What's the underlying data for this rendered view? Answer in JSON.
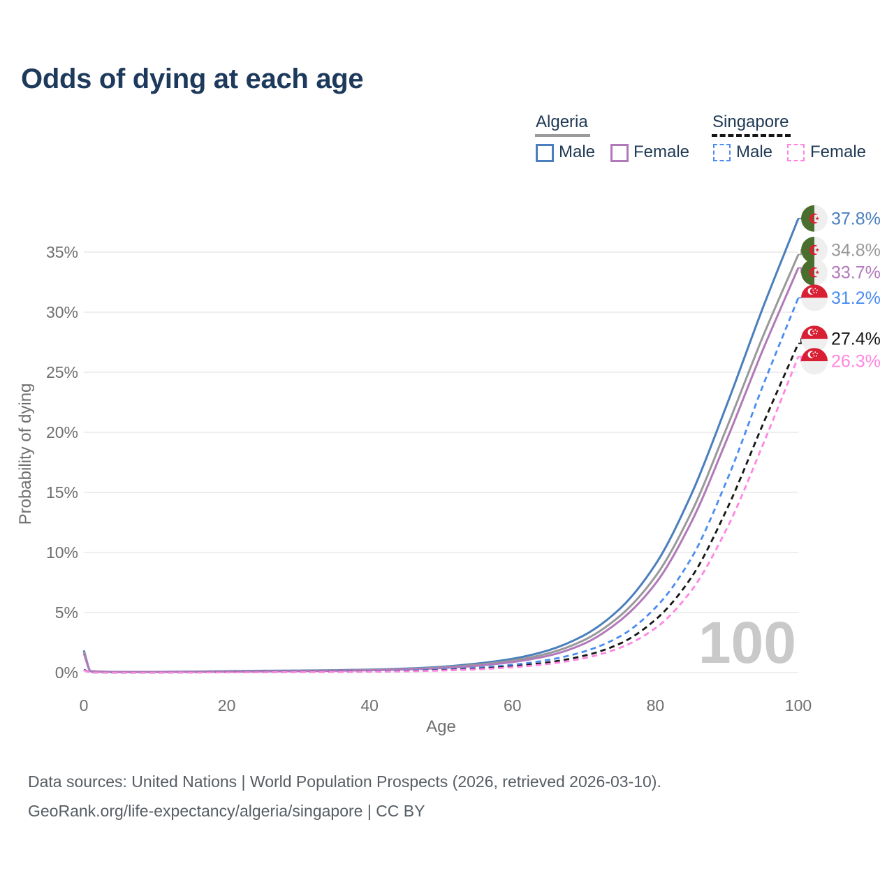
{
  "title": "Odds of dying at each age",
  "legend": {
    "groups": [
      {
        "country": "Algeria",
        "line_style": "solid",
        "line_color": "#9b9b9b",
        "items": [
          {
            "label": "Male",
            "color": "#4a7ebc"
          },
          {
            "label": "Female",
            "color": "#b279ba"
          }
        ]
      },
      {
        "country": "Singapore",
        "line_style": "dashed",
        "line_color": "#161616",
        "items": [
          {
            "label": "Male",
            "color": "#4b8df0"
          },
          {
            "label": "Female",
            "color": "#ff85e2"
          }
        ]
      }
    ]
  },
  "footer": {
    "line1": "Data sources: United Nations | World Population Prospects (2026, retrieved 2026-03-10).",
    "line2": "GeoRank.org/life-expectancy/algeria/singapore | CC BY"
  },
  "chart_data": {
    "type": "line",
    "title": "Odds of dying at each age",
    "xlabel": "Age",
    "ylabel": "Probability of dying",
    "xlim": [
      0,
      100
    ],
    "ylim": [
      0,
      38
    ],
    "x_ticks": [
      0,
      20,
      40,
      60,
      80,
      100
    ],
    "y_ticks": [
      "0%",
      "5%",
      "10%",
      "15%",
      "20%",
      "25%",
      "30%",
      "35%"
    ],
    "y_tick_step_pct": 5,
    "grid": "horizontal",
    "legend_position": "top-right",
    "age_indicator_label": "100",
    "x": [
      0,
      1,
      5,
      10,
      15,
      20,
      25,
      30,
      35,
      40,
      45,
      50,
      55,
      60,
      65,
      70,
      75,
      80,
      85,
      90,
      95,
      100
    ],
    "series": [
      {
        "key": "algeria-male",
        "name": "Algeria Male",
        "country": "Algeria",
        "flag": "dz",
        "color": "#4a7ebc",
        "dashed": false,
        "end_label": "37.8%",
        "end_value_pct": 37.8,
        "values": [
          1.85,
          0.12,
          0.06,
          0.06,
          0.08,
          0.12,
          0.15,
          0.17,
          0.2,
          0.25,
          0.33,
          0.48,
          0.75,
          1.15,
          1.85,
          3.1,
          5.3,
          9.0,
          14.8,
          22.3,
          30.3,
          37.8
        ]
      },
      {
        "key": "algeria-combined",
        "name": "Algeria (both sexes)",
        "country": "Algeria",
        "flag": "dz",
        "color": "#999999",
        "dashed": false,
        "end_label": "34.8%",
        "end_value_pct": 34.8,
        "values": [
          1.75,
          0.11,
          0.055,
          0.055,
          0.07,
          0.1,
          0.12,
          0.14,
          0.17,
          0.22,
          0.29,
          0.42,
          0.65,
          1.0,
          1.6,
          2.7,
          4.7,
          8.0,
          13.3,
          20.4,
          27.9,
          34.8
        ]
      },
      {
        "key": "algeria-female",
        "name": "Algeria Female",
        "country": "Algeria",
        "flag": "dz",
        "color": "#b279ba",
        "dashed": false,
        "end_label": "33.7%",
        "end_value_pct": 33.7,
        "values": [
          1.6,
          0.1,
          0.05,
          0.05,
          0.06,
          0.08,
          0.1,
          0.12,
          0.15,
          0.19,
          0.26,
          0.37,
          0.57,
          0.88,
          1.4,
          2.4,
          4.3,
          7.4,
          12.5,
          19.4,
          26.8,
          33.7
        ]
      },
      {
        "key": "singapore-male",
        "name": "Singapore Male",
        "country": "Singapore",
        "flag": "sg",
        "color": "#4b8df0",
        "dashed": true,
        "end_label": "31.2%",
        "end_value_pct": 31.2,
        "values": [
          0.25,
          0.02,
          0.01,
          0.01,
          0.02,
          0.04,
          0.05,
          0.06,
          0.08,
          0.11,
          0.16,
          0.25,
          0.4,
          0.65,
          1.05,
          1.75,
          3.0,
          5.4,
          9.5,
          16.0,
          23.8,
          31.2
        ]
      },
      {
        "key": "singapore-combined",
        "name": "Singapore (both sexes)",
        "country": "Singapore",
        "flag": "sg",
        "color": "#161616",
        "dashed": true,
        "end_label": "27.4%",
        "end_value_pct": 27.4,
        "values": [
          0.22,
          0.018,
          0.009,
          0.009,
          0.015,
          0.03,
          0.04,
          0.05,
          0.065,
          0.09,
          0.13,
          0.2,
          0.32,
          0.52,
          0.85,
          1.4,
          2.4,
          4.4,
          7.9,
          13.6,
          20.6,
          27.4
        ]
      },
      {
        "key": "singapore-female",
        "name": "Singapore Female",
        "country": "Singapore",
        "flag": "sg",
        "color": "#ff85e2",
        "dashed": true,
        "end_label": "26.3%",
        "end_value_pct": 26.3,
        "values": [
          0.19,
          0.015,
          0.008,
          0.008,
          0.012,
          0.02,
          0.03,
          0.04,
          0.05,
          0.075,
          0.11,
          0.17,
          0.27,
          0.44,
          0.72,
          1.2,
          2.05,
          3.7,
          6.8,
          12.0,
          18.9,
          26.3
        ]
      }
    ]
  }
}
